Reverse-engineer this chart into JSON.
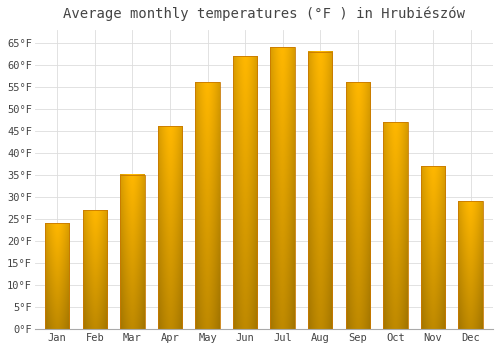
{
  "title": "Average monthly temperatures (°F ) in Hrubiészów",
  "months": [
    "Jan",
    "Feb",
    "Mar",
    "Apr",
    "May",
    "Jun",
    "Jul",
    "Aug",
    "Sep",
    "Oct",
    "Nov",
    "Dec"
  ],
  "values": [
    24,
    27,
    35,
    46,
    56,
    62,
    64,
    63,
    56,
    47,
    37,
    29
  ],
  "bar_color_light": "#FFB830",
  "bar_color_dark": "#E88000",
  "bar_edge_color": "#C87800",
  "background_color": "#FFFFFF",
  "grid_color": "#DDDDDD",
  "text_color": "#444444",
  "ylim": [
    0,
    68
  ],
  "yticks": [
    0,
    5,
    10,
    15,
    20,
    25,
    30,
    35,
    40,
    45,
    50,
    55,
    60,
    65
  ],
  "title_fontsize": 10,
  "tick_fontsize": 7.5,
  "ylabel_suffix": "°F"
}
